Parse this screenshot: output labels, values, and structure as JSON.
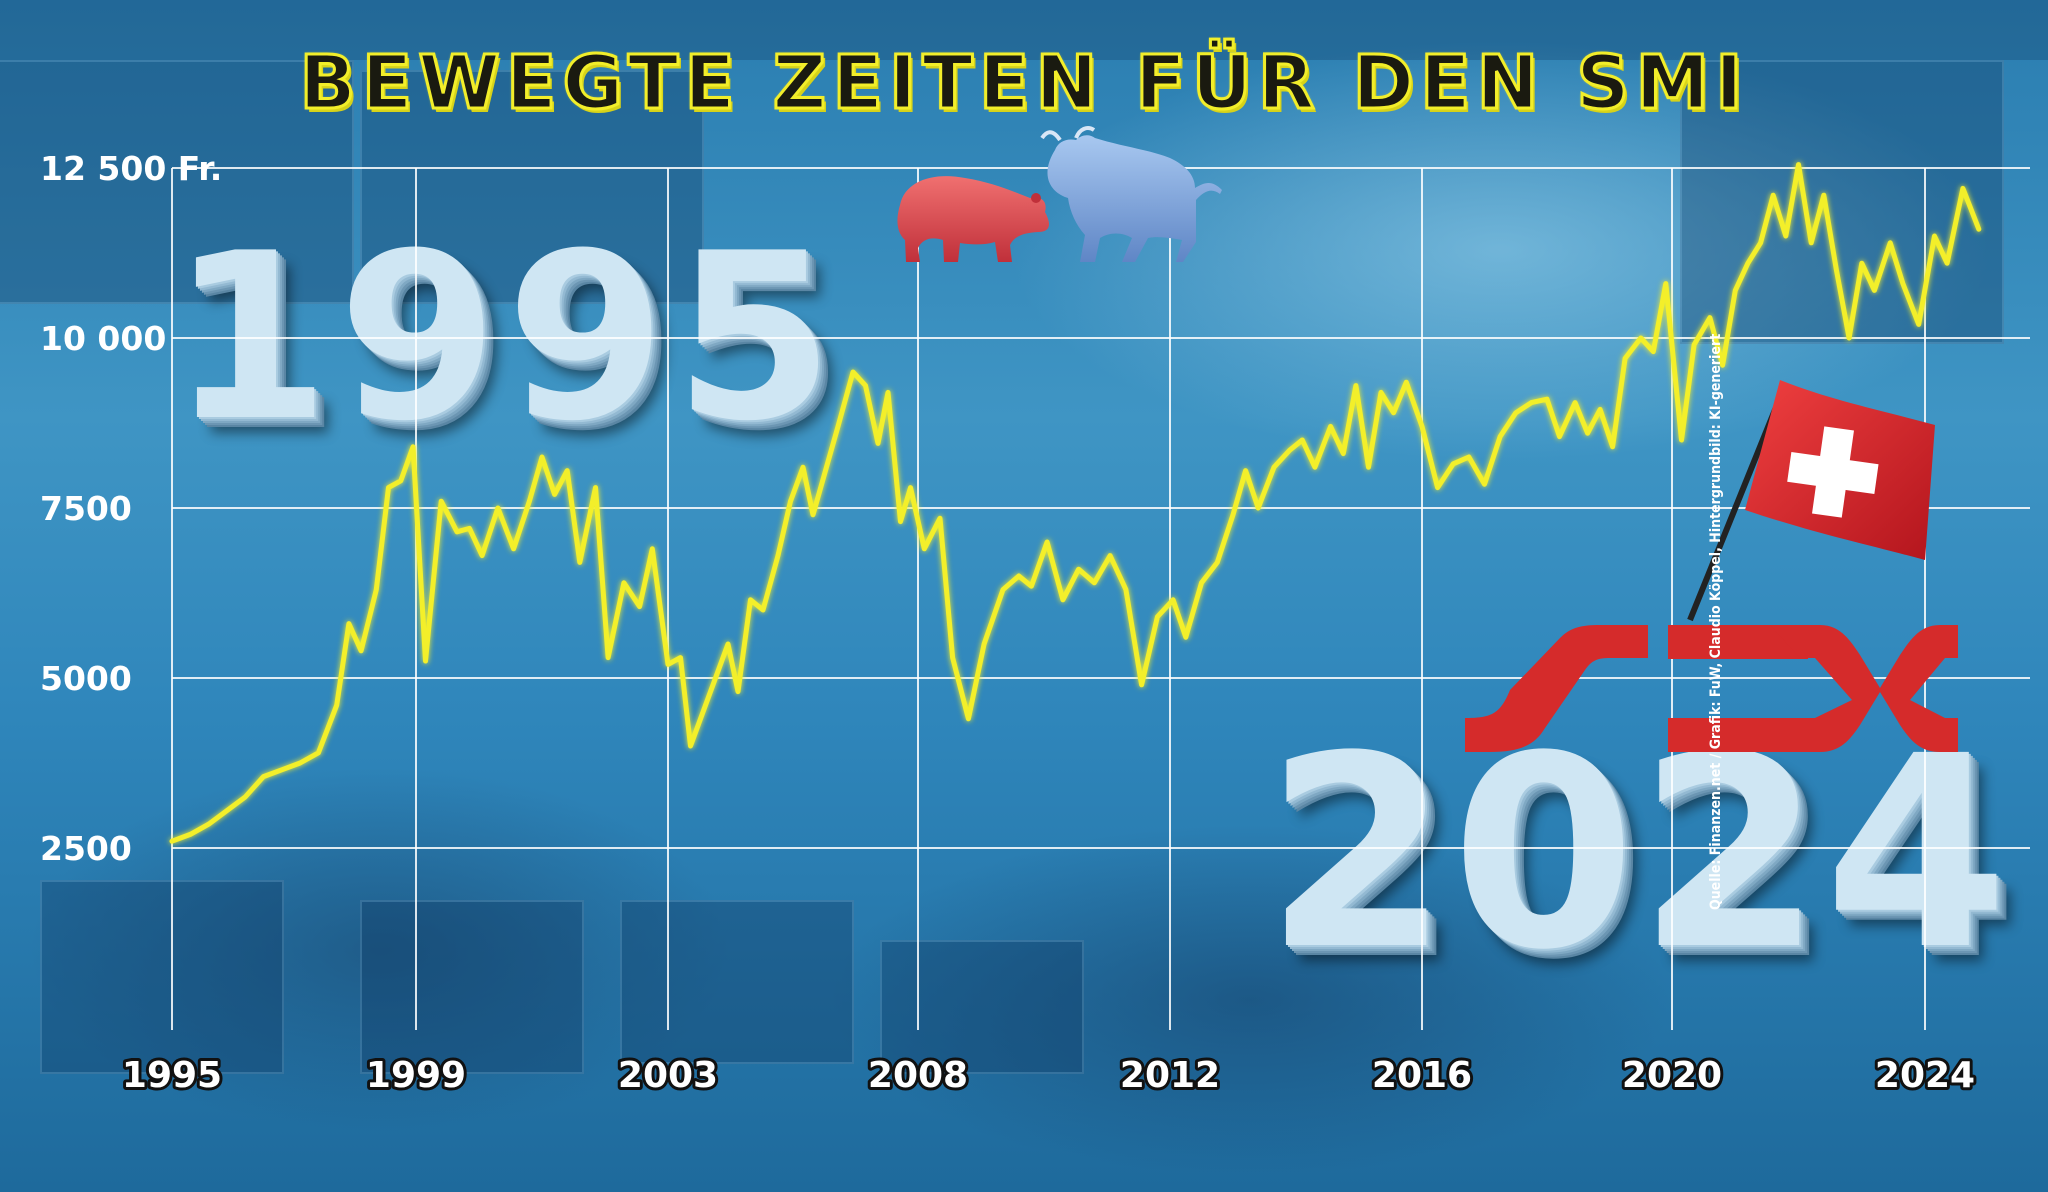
{
  "title": "BEWEGTE ZEITEN FÜR DEN SMI",
  "big_year_start": "1995",
  "big_year_end": "2024",
  "logo_text": "SIX",
  "source_note": "Quelle: Finanzen.net / Grafik: FuW, Claudio Köppel, Hintergrundbild: KI-generiert",
  "colors": {
    "line": "#f3ef2b",
    "grid": "#ffffff",
    "flag_red": "#d9232c",
    "logo_red": "#d52b2b"
  },
  "chart_data": {
    "type": "line",
    "title": "BEWEGTE ZEITEN FÜR DEN SMI",
    "xlabel": "",
    "ylabel": "",
    "ylim": [
      2500,
      12500
    ],
    "xlim": [
      1995,
      2025
    ],
    "yticks": [
      {
        "value": 2500,
        "label": "2500"
      },
      {
        "value": 5000,
        "label": "5000"
      },
      {
        "value": 7500,
        "label": "7500"
      },
      {
        "value": 10000,
        "label": "10 000"
      },
      {
        "value": 12500,
        "label": "12 500 Fr."
      }
    ],
    "xticks": [
      {
        "value": 1995,
        "label": "1995"
      },
      {
        "value": 1999,
        "label": "1999"
      },
      {
        "value": 2003,
        "label": "2003"
      },
      {
        "value": 2008,
        "label": "2008"
      },
      {
        "value": 2012,
        "label": "2012"
      },
      {
        "value": 2016,
        "label": "2016"
      },
      {
        "value": 2020,
        "label": "2020"
      },
      {
        "value": 2024,
        "label": "2024"
      }
    ],
    "grid": true,
    "series": [
      {
        "color": "#f3ef2b",
        "points": [
          [
            1995.0,
            2600
          ],
          [
            1995.3,
            2700
          ],
          [
            1995.6,
            2850
          ],
          [
            1995.9,
            3050
          ],
          [
            1996.2,
            3250
          ],
          [
            1996.5,
            3550
          ],
          [
            1996.8,
            3650
          ],
          [
            1997.1,
            3750
          ],
          [
            1997.4,
            3900
          ],
          [
            1997.7,
            4600
          ],
          [
            1997.9,
            5800
          ],
          [
            1998.1,
            5400
          ],
          [
            1998.35,
            6300
          ],
          [
            1998.55,
            7800
          ],
          [
            1998.75,
            7900
          ],
          [
            1998.95,
            8400
          ],
          [
            1999.15,
            5250
          ],
          [
            1999.4,
            7600
          ],
          [
            1999.65,
            7150
          ],
          [
            1999.85,
            7200
          ],
          [
            2000.05,
            6800
          ],
          [
            2000.3,
            7500
          ],
          [
            2000.55,
            6900
          ],
          [
            2000.8,
            7600
          ],
          [
            2001.0,
            8250
          ],
          [
            2001.2,
            7700
          ],
          [
            2001.4,
            8050
          ],
          [
            2001.6,
            6700
          ],
          [
            2001.85,
            7800
          ],
          [
            2002.05,
            5300
          ],
          [
            2002.3,
            6400
          ],
          [
            2002.55,
            6050
          ],
          [
            2002.75,
            6900
          ],
          [
            2003.0,
            5200
          ],
          [
            2003.25,
            5300
          ],
          [
            2003.45,
            4000
          ],
          [
            2003.7,
            4500
          ],
          [
            2003.95,
            5000
          ],
          [
            2004.2,
            5500
          ],
          [
            2004.4,
            4800
          ],
          [
            2004.65,
            6150
          ],
          [
            2004.9,
            6000
          ],
          [
            2005.2,
            6800
          ],
          [
            2005.45,
            7600
          ],
          [
            2005.7,
            8100
          ],
          [
            2005.9,
            7400
          ],
          [
            2006.15,
            8050
          ],
          [
            2006.4,
            8700
          ],
          [
            2006.7,
            9500
          ],
          [
            2006.95,
            9300
          ],
          [
            2007.2,
            8450
          ],
          [
            2007.4,
            9200
          ],
          [
            2007.65,
            7300
          ],
          [
            2007.85,
            7800
          ],
          [
            2008.1,
            6900
          ],
          [
            2008.35,
            7350
          ],
          [
            2008.55,
            5300
          ],
          [
            2008.8,
            4400
          ],
          [
            2009.05,
            5500
          ],
          [
            2009.35,
            6300
          ],
          [
            2009.6,
            6500
          ],
          [
            2009.8,
            6350
          ],
          [
            2010.05,
            7000
          ],
          [
            2010.3,
            6150
          ],
          [
            2010.55,
            6600
          ],
          [
            2010.8,
            6400
          ],
          [
            2011.05,
            6800
          ],
          [
            2011.3,
            6300
          ],
          [
            2011.55,
            4900
          ],
          [
            2011.8,
            5900
          ],
          [
            2012.05,
            6150
          ],
          [
            2012.25,
            5600
          ],
          [
            2012.5,
            6400
          ],
          [
            2012.75,
            6700
          ],
          [
            2013.0,
            7400
          ],
          [
            2013.2,
            8050
          ],
          [
            2013.4,
            7500
          ],
          [
            2013.65,
            8100
          ],
          [
            2013.9,
            8350
          ],
          [
            2014.1,
            8500
          ],
          [
            2014.3,
            8100
          ],
          [
            2014.55,
            8700
          ],
          [
            2014.75,
            8300
          ],
          [
            2014.95,
            9300
          ],
          [
            2015.15,
            8100
          ],
          [
            2015.35,
            9200
          ],
          [
            2015.55,
            8900
          ],
          [
            2015.75,
            9350
          ],
          [
            2016.0,
            8700
          ],
          [
            2016.25,
            7800
          ],
          [
            2016.5,
            8150
          ],
          [
            2016.75,
            8250
          ],
          [
            2017.0,
            7850
          ],
          [
            2017.25,
            8550
          ],
          [
            2017.5,
            8900
          ],
          [
            2017.75,
            9050
          ],
          [
            2018.0,
            9100
          ],
          [
            2018.2,
            8550
          ],
          [
            2018.45,
            9050
          ],
          [
            2018.65,
            8600
          ],
          [
            2018.85,
            8950
          ],
          [
            2019.05,
            8400
          ],
          [
            2019.25,
            9700
          ],
          [
            2019.5,
            10000
          ],
          [
            2019.7,
            9800
          ],
          [
            2019.9,
            10800
          ],
          [
            2020.15,
            8500
          ],
          [
            2020.35,
            9900
          ],
          [
            2020.6,
            10300
          ],
          [
            2020.8,
            9600
          ],
          [
            2021.0,
            10700
          ],
          [
            2021.2,
            11100
          ],
          [
            2021.4,
            11400
          ],
          [
            2021.6,
            12100
          ],
          [
            2021.8,
            11500
          ],
          [
            2022.0,
            12550
          ],
          [
            2022.2,
            11400
          ],
          [
            2022.4,
            12100
          ],
          [
            2022.6,
            11000
          ],
          [
            2022.8,
            10000
          ],
          [
            2023.0,
            11100
          ],
          [
            2023.2,
            10700
          ],
          [
            2023.45,
            11400
          ],
          [
            2023.65,
            10800
          ],
          [
            2023.9,
            10200
          ],
          [
            2024.15,
            11500
          ],
          [
            2024.35,
            11100
          ],
          [
            2024.6,
            12200
          ],
          [
            2024.85,
            11600
          ]
        ]
      }
    ]
  }
}
